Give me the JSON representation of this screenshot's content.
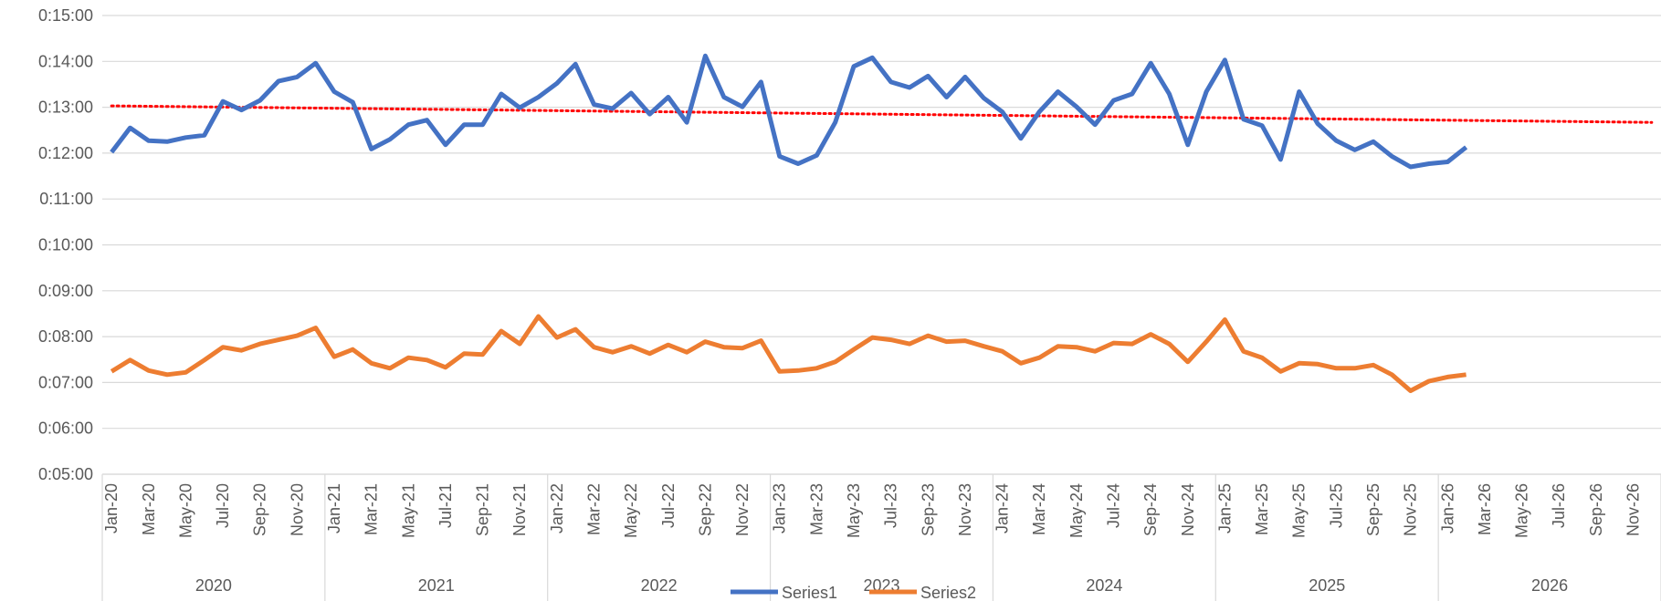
{
  "chart_data": {
    "type": "line",
    "categories": [
      "Jan-20",
      null,
      "Mar-20",
      null,
      "May-20",
      null,
      "Jul-20",
      null,
      "Sep-20",
      null,
      "Nov-20",
      null,
      "Jan-21",
      null,
      "Mar-21",
      null,
      "May-21",
      null,
      "Jul-21",
      null,
      "Sep-21",
      null,
      "Nov-21",
      null,
      "Jan-22",
      null,
      "Mar-22",
      null,
      "May-22",
      null,
      "Jul-22",
      null,
      "Sep-22",
      null,
      "Nov-22",
      null,
      "Jan-23",
      null,
      "Mar-23",
      null,
      "May-23",
      null,
      "Jul-23",
      null,
      "Sep-23",
      null,
      "Nov-23",
      null,
      "Jan-24",
      null,
      "Mar-24",
      null,
      "May-24",
      null,
      "Jul-24",
      null,
      "Sep-24",
      null,
      "Nov-24",
      null,
      "Jan-25",
      null,
      "Mar-25",
      null,
      "May-25",
      null,
      "Jul-25",
      null,
      "Sep-25",
      null,
      "Nov-25",
      null,
      "Jan-26",
      null,
      "Mar-26",
      null,
      "May-26",
      null,
      "Jul-26",
      null,
      "Sep-26",
      null,
      "Nov-26",
      null
    ],
    "years": [
      "2020",
      "2021",
      "2022",
      "2023",
      "2024",
      "2025",
      "2026"
    ],
    "ylim": [
      5,
      15
    ],
    "yticks": [
      {
        "value": 5,
        "label": "0:05:00"
      },
      {
        "value": 6,
        "label": "0:06:00"
      },
      {
        "value": 7,
        "label": "0:07:00"
      },
      {
        "value": 8,
        "label": "0:08:00"
      },
      {
        "value": 9,
        "label": "0:09:00"
      },
      {
        "value": 10,
        "label": "0:10:00"
      },
      {
        "value": 11,
        "label": "0:11:00"
      },
      {
        "value": 12,
        "label": "0:12:00"
      },
      {
        "value": 13,
        "label": "0:13:00"
      },
      {
        "value": 14,
        "label": "0:14:00"
      },
      {
        "value": 15,
        "label": "0:15:00"
      }
    ],
    "grid": true,
    "series": [
      {
        "name": "Series1",
        "color": "#4472c4",
        "values": [
          12.02,
          12.55,
          12.27,
          12.25,
          12.34,
          12.39,
          13.13,
          12.94,
          13.15,
          13.57,
          13.66,
          13.96,
          13.34,
          13.11,
          12.09,
          12.3,
          12.62,
          12.72,
          12.18,
          12.62,
          12.62,
          13.29,
          12.99,
          13.22,
          13.52,
          13.94,
          13.06,
          12.97,
          13.31,
          12.85,
          13.22,
          12.67,
          14.12,
          13.22,
          13.01,
          13.55,
          11.93,
          11.77,
          11.95,
          12.67,
          13.89,
          14.08,
          13.55,
          13.43,
          13.68,
          13.22,
          13.66,
          13.2,
          12.9,
          12.32,
          12.9,
          13.34,
          13.01,
          12.62,
          13.15,
          13.29,
          13.96,
          13.29,
          12.18,
          13.34,
          14.03,
          12.74,
          12.6,
          11.86,
          13.34,
          12.64,
          12.27,
          12.07,
          12.25,
          11.93,
          11.7,
          11.77,
          11.81,
          12.13,
          null,
          null,
          null,
          null,
          null,
          null,
          null,
          null,
          null,
          null
        ]
      },
      {
        "name": "Series2",
        "color": "#ed7d31",
        "values": [
          7.24,
          7.49,
          7.26,
          7.17,
          7.22,
          7.49,
          7.77,
          7.7,
          7.84,
          7.93,
          8.02,
          8.19,
          7.56,
          7.72,
          7.42,
          7.31,
          7.54,
          7.49,
          7.33,
          7.63,
          7.61,
          8.12,
          7.84,
          8.44,
          7.98,
          8.16,
          7.77,
          7.66,
          7.79,
          7.63,
          7.82,
          7.66,
          7.89,
          7.77,
          7.75,
          7.91,
          7.24,
          7.26,
          7.31,
          7.45,
          7.72,
          7.98,
          7.93,
          7.84,
          8.02,
          7.89,
          7.91,
          7.79,
          7.68,
          7.42,
          7.54,
          7.79,
          7.77,
          7.68,
          7.86,
          7.84,
          8.05,
          7.84,
          7.45,
          7.89,
          8.37,
          7.68,
          7.54,
          7.24,
          7.42,
          7.4,
          7.31,
          7.31,
          7.38,
          7.17,
          6.82,
          7.03,
          7.12,
          7.17,
          null,
          null,
          null,
          null,
          null,
          null,
          null,
          null,
          null,
          null
        ]
      }
    ],
    "trendline": {
      "color": "#ff0000",
      "values": [
        13.03,
        12.67
      ]
    }
  }
}
